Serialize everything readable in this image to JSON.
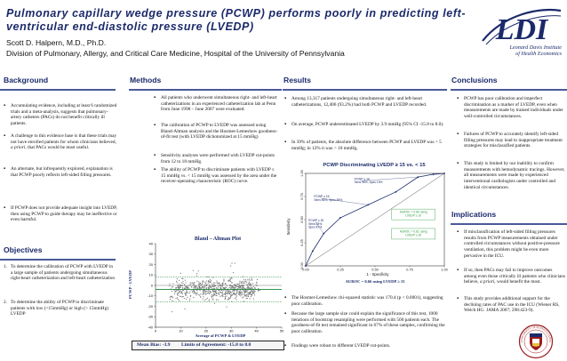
{
  "header": {
    "title": "Pulmonary capillary wedge pressure (PCWP) performs poorly in predicting left-ventricular end-diastolic pressure (LVEDP)",
    "authors": "Scott D. Halpern, M.D., Ph.D.",
    "affiliation": "Division of Pulmonary, Allergy, and Critical Care Medicine, Hospital of the University of Pennsylvania",
    "logo_text": "LDI",
    "logo_name_line1": "Leonard Davis Institute",
    "logo_name_line2": "of Health Economics"
  },
  "background": {
    "heading": "Background",
    "bullets": [
      "Accumulating evidence, including at least 6 randomized trials and a meta-analysis, suggests that pulmonary-artery catheters (PACs) do not benefit critically ill patients.",
      "A challenge to this evidence base is that these trials may not have enrolled patients for whom clinicians believed, a priori, that PACs would be most useful.",
      "An alternate, but infrequently explored, explanation is that PCWP poorly reflects left-sided filling pressures.",
      "If PCWP does not provide adequate insight into LVEDP, then using PCWP to guide therapy may be ineffective or even harmful."
    ]
  },
  "objectives": {
    "heading": "Objectives",
    "items": [
      {
        "n": "1.",
        "text": "To determine the calibration of PCWP with LVEDP in a large sample of patients undergoing simultaneous right-heart catheterization and left-heart catheterization"
      },
      {
        "n": "2.",
        "text": "To determine the ability of PCWP to discriminate patients with low (<15mmHg) or high (> 15mmHg) LVEDP"
      }
    ]
  },
  "methods": {
    "heading": "Methods",
    "bullets": [
      "All patients who underwent simultaneous right- and left-heart catheterizations in an experienced catheterization lab at Penn from June 1998 – June 2007 were evaluated.",
      "The calibration of PCWP to LVEDP was assessed using Bland-Altman analysis and the Hosmer-Lemeshow goodness-of-fit test (with LVEDP dichotomized at 15 mmHg)",
      "Sensitivity analyses were performed with LVEDP cut-points from 12 to 18 mmHg.",
      "The ability of PCWP to discriminate patients with LVEDP ≤ 15 mmHg vs. < 15 mmHg was assessed by the area under the receiver-operating characteristic (ROC) curve."
    ]
  },
  "bland_altman": {
    "title": "Bland – Altman Plot",
    "xlabel": "Average of PCWP & LVEDP",
    "ylabel": "PCWP - LVEDP",
    "x_ticks": [
      "0",
      "10",
      "20",
      "30",
      "40",
      "50"
    ],
    "y_ticks": [
      "40",
      "30",
      "20",
      "10",
      "0",
      "-10",
      "-20",
      "-30",
      "-40"
    ],
    "bias_label": "Mean Bias: -3.9",
    "loa_label": "Limits of Agreement: -15.8 to 8.0"
  },
  "results": {
    "heading": "Results",
    "bullets_top": [
      "Among 13,317 patients undergoing simultaneous right- and left-heart catheterizations, 12,406 (93.2%) had both PCWP and LVEDP recorded.",
      "On average, PCWP underestimated LVEDP by 3.9 mmHg (95% CI -15.8 to 8.0).",
      "In 39% of patients, the absolute difference between PCWP and LVEDP was > 5 mmHg; in 12% it was > 10 mmHg."
    ],
    "bullets_bottom": [
      "The Hosmer-Lemeshow chi-squared statistic was 170.4 (p < 0.0001), suggesting poor calibration.",
      "Because the large sample size could explain the significance of this test, 1000 iterations of bootstrap resampling were performed with 500 patients each. The goodness-of-fit test remained significant in 67% of these samples, confirming the poor calibration.",
      "Findings were robust to different LVEDP cut-points."
    ]
  },
  "roc": {
    "title": "PCWP Discriminating LVEDP ≥ 15 vs. < 15",
    "xlabel": "1 - Specificity",
    "ylabel": "Sensitivity",
    "x_ticks": [
      "0.00",
      "0.25",
      "0.50",
      "0.75",
      "1.00"
    ],
    "y_ticks": [
      "0.00",
      "0.25",
      "0.50",
      "0.75",
      "1.00"
    ],
    "annotations": [
      "PCWP ≥ 10\nSens 96%, Spec 19%",
      "PCWP ≥ 15\nSens 66%, Spec 55%",
      "PCWP ≥ 20\nSens 35%,\nSpec 87%"
    ],
    "auroc_boxes": [
      "AUROC = 0.80 using LVEDP ≥ 10",
      "AUROC = 0.81 using LVEDP ≥ 20"
    ],
    "auroc_main": "AUROC = 0.66 using LVEDP ≥ 15"
  },
  "conclusions": {
    "heading": "Conclusions",
    "bullets": [
      "PCWP has poor calibration and imperfect discrimination as a marker of LVEDP, even when measurements are made by trained individuals under well-controlled circumstances.",
      "Failures of PCWP to accurately identify left-sided filling pressures may lead to inappropriate treatment strategies for misclassified patients.",
      "This study is limited by our inability to confirm measurements with hemodynamic tracings. However, all measurements were made by experienced interventional cardiologists under controlled and identical circumstances."
    ]
  },
  "implications": {
    "heading": "Implications",
    "bullets": [
      "If misclassification of left-sided filling pressures results from PCWP measurements obtained under controlled circumstances without positive-pressure ventilation, this problem might be even more pervasive in the ICU.",
      "If so, then PACs may fail to improve outcomes among even those critically ill patients who clinicians believe, a priori, would benefit the most.",
      "This study provides additional support for the declining rates of PAC use in the ICU (Wiener RS, Welch HG. JAMA 2007; 298:423-9)."
    ]
  },
  "penn": {
    "shield_text": "UNIVERSITY OF PENNSYLVANIA"
  },
  "chart_data": [
    {
      "type": "scatter",
      "title": "Bland – Altman Plot",
      "xlabel": "Average of PCWP & LVEDP",
      "ylabel": "PCWP - LVEDP",
      "xlim": [
        0,
        50
      ],
      "ylim": [
        -40,
        40
      ],
      "mean_bias": -3.9,
      "limits_of_agreement": [
        -15.8,
        8.0
      ]
    },
    {
      "type": "line",
      "title": "PCWP Discriminating LVEDP ≥ 15 vs. < 15",
      "xlabel": "1 - Specificity",
      "ylabel": "Sensitivity",
      "xlim": [
        0,
        1
      ],
      "ylim": [
        0,
        1
      ],
      "x": [
        0.0,
        0.05,
        0.13,
        0.25,
        0.45,
        0.65,
        0.81,
        0.92,
        1.0
      ],
      "y": [
        0.0,
        0.16,
        0.35,
        0.52,
        0.66,
        0.8,
        0.96,
        0.99,
        1.0
      ],
      "reference_line": [
        [
          0,
          0
        ],
        [
          1,
          1
        ]
      ]
    }
  ]
}
